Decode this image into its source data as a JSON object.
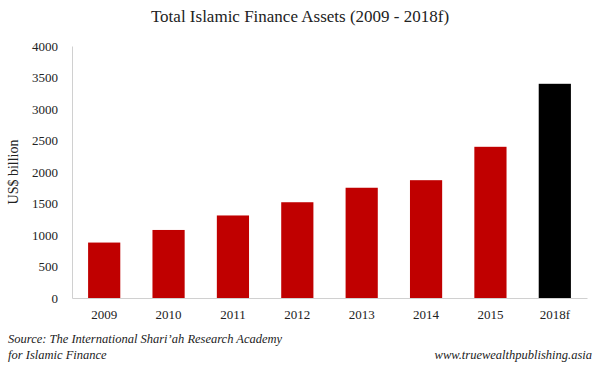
{
  "chart_data": {
    "type": "bar",
    "title": "Total Islamic Finance Assets (2009 - 2018f)",
    "y_label": "US$ billion",
    "categories": [
      "2009",
      "2010",
      "2011",
      "2012",
      "2013",
      "2014",
      "2015",
      "2018f"
    ],
    "values": [
      880,
      1080,
      1310,
      1520,
      1750,
      1870,
      2400,
      3400
    ],
    "colors": [
      "#c00000",
      "#c00000",
      "#c00000",
      "#c00000",
      "#c00000",
      "#c00000",
      "#c00000",
      "#000000"
    ],
    "ylim": [
      0,
      4000
    ],
    "yticks": [
      0,
      500,
      1000,
      1500,
      2000,
      2500,
      3000,
      3500,
      4000
    ],
    "grid": false,
    "source": [
      "Source: The International Shari’ah Research Academy",
      "for Islamic Finance"
    ],
    "credit": "www.truewealthpublishing.asia"
  }
}
